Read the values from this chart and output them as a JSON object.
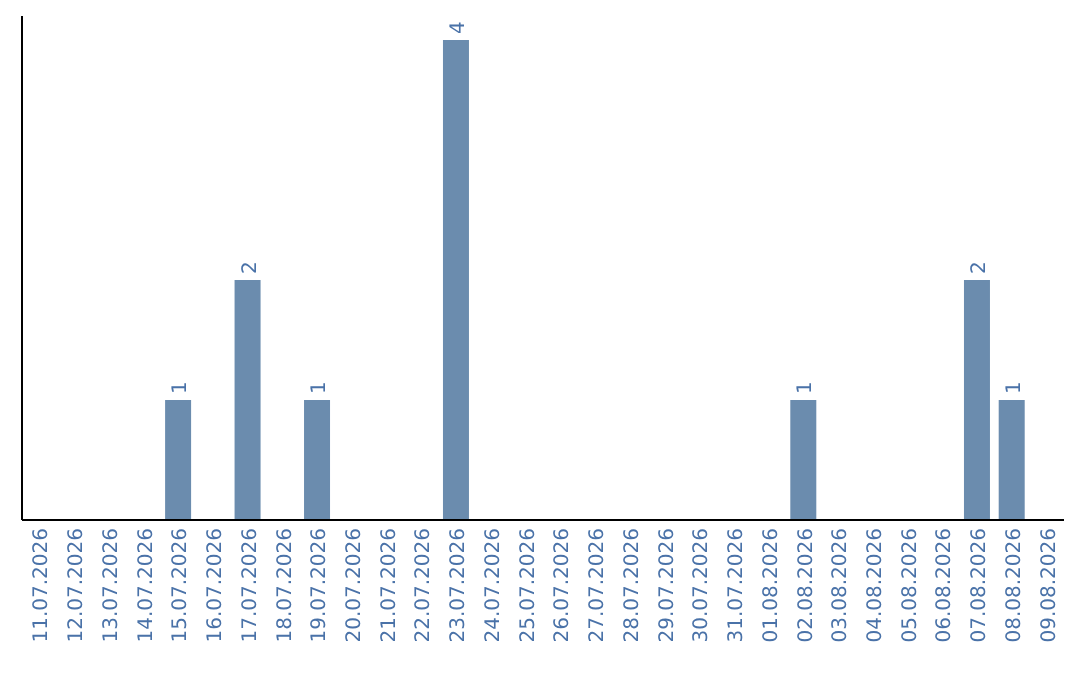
{
  "chart_data": {
    "type": "bar",
    "categories": [
      "11.07.2026",
      "12.07.2026",
      "13.07.2026",
      "14.07.2026",
      "15.07.2026",
      "16.07.2026",
      "17.07.2026",
      "18.07.2026",
      "19.07.2026",
      "20.07.2026",
      "21.07.2026",
      "22.07.2026",
      "23.07.2026",
      "24.07.2026",
      "25.07.2026",
      "26.07.2026",
      "27.07.2026",
      "28.07.2026",
      "29.07.2026",
      "30.07.2026",
      "31.07.2026",
      "01.08.2026",
      "02.08.2026",
      "03.08.2026",
      "04.08.2026",
      "05.08.2026",
      "06.08.2026",
      "07.08.2026",
      "08.08.2026",
      "09.08.2026"
    ],
    "series": [
      {
        "color": "#6b8cae",
        "values": [
          0,
          0,
          0,
          0,
          1,
          0,
          2,
          0,
          1,
          0,
          0,
          0,
          4,
          0,
          0,
          0,
          0,
          0,
          0,
          0,
          0,
          0,
          1,
          0,
          0,
          0,
          0,
          2,
          1,
          0
        ],
        "value_labels": [
          null,
          null,
          null,
          null,
          "1",
          null,
          "2",
          null,
          "1",
          null,
          null,
          null,
          "4",
          null,
          null,
          null,
          null,
          null,
          null,
          null,
          null,
          null,
          "1",
          null,
          null,
          null,
          null,
          "2",
          "1",
          null
        ]
      }
    ],
    "ylim": [
      0,
      4.2
    ],
    "tick_labels": "x",
    "grid": false,
    "legend": false
  }
}
